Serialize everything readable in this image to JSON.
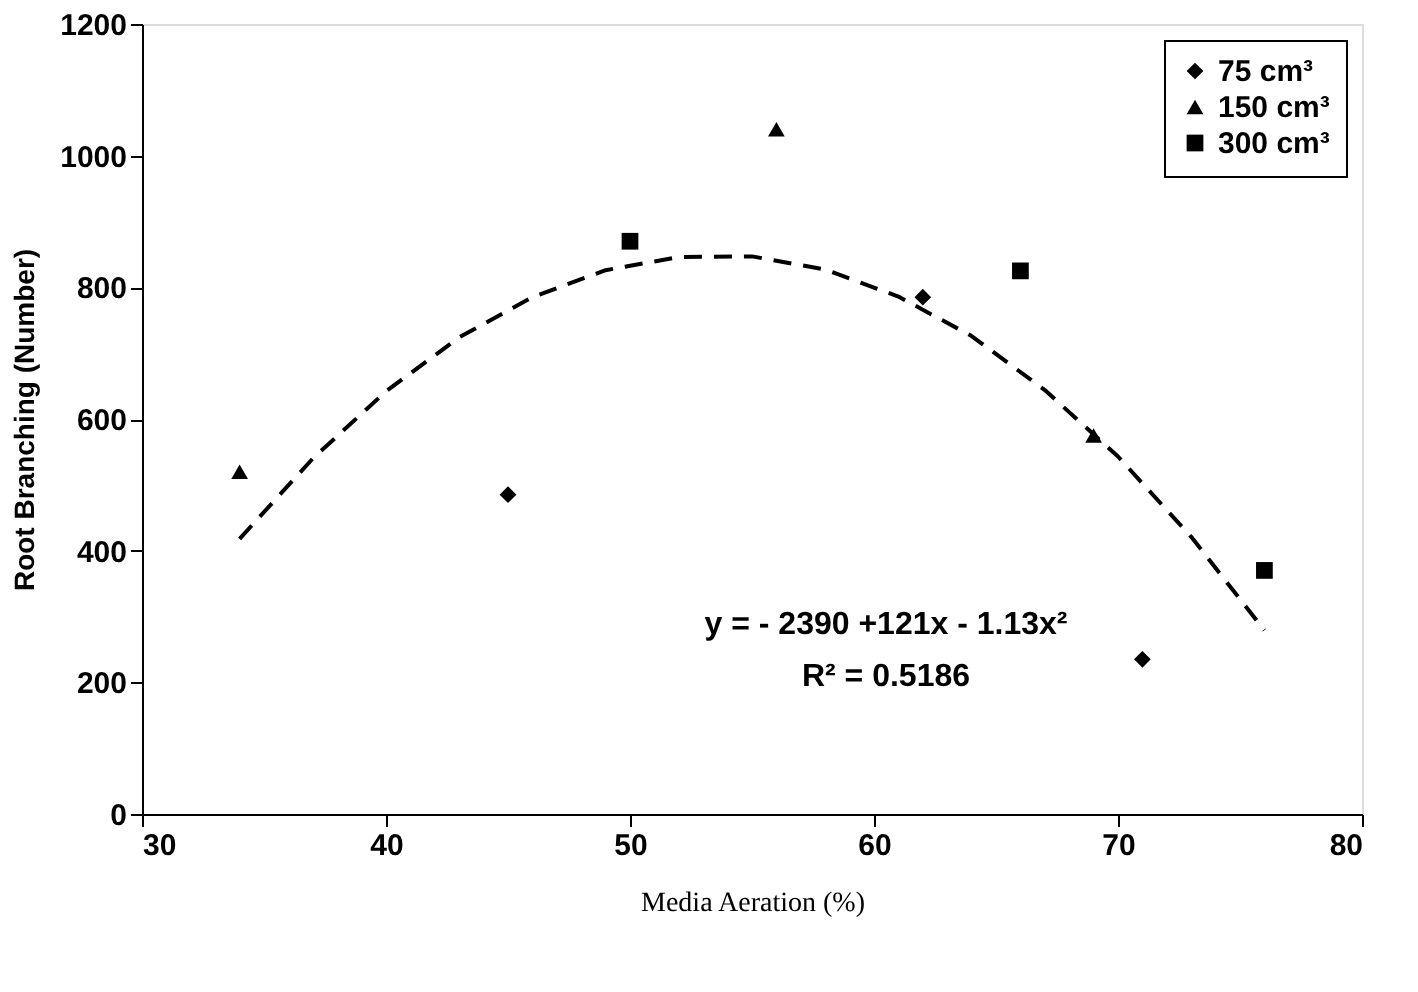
{
  "chart_data": {
    "type": "scatter",
    "xlabel": "Media Aeration (%)",
    "ylabel": "Root Branching (Number)",
    "xlim": [
      30,
      80
    ],
    "xticks": [
      30,
      40,
      50,
      60,
      70,
      80
    ],
    "ylim": [
      0,
      1200
    ],
    "yticks": [
      0,
      200,
      400,
      600,
      800,
      1000,
      1200
    ],
    "grid": false,
    "legend": "top right",
    "series": [
      {
        "name": "75 cm³",
        "color": "#000000",
        "marker": "diamond",
        "x": [
          45,
          62,
          71
        ],
        "values": [
          485,
          785,
          235
        ]
      },
      {
        "name": "150 cm³",
        "color": "#000000",
        "marker": "triangle",
        "x": [
          34,
          56,
          69
        ],
        "values": [
          520,
          1040,
          575
        ]
      },
      {
        "name": "300 cm³",
        "color": "#000000",
        "marker": "square",
        "x": [
          50,
          66,
          76
        ],
        "values": [
          870,
          825,
          370
        ]
      },
      {
        "type": "line",
        "color": "#000000",
        "line_style": "dashed",
        "x": [
          34,
          37,
          40,
          43,
          46,
          49,
          52,
          55,
          58,
          61,
          64,
          67,
          70,
          73,
          76
        ],
        "values": [
          418,
          540,
          642,
          724,
          785,
          826,
          846,
          847,
          827,
          786,
          726,
          644,
          543,
          421,
          279
        ]
      }
    ],
    "annotations": [
      "y = - 2390 +121x - 1.13x²",
      "R² = 0.5186"
    ]
  }
}
